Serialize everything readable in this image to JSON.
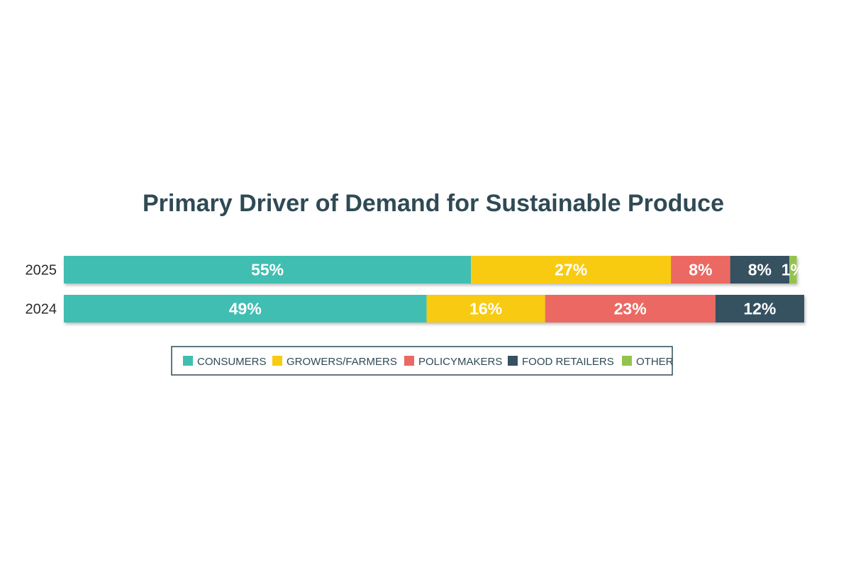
{
  "chart_data": {
    "type": "bar",
    "orientation": "horizontal",
    "stacked": true,
    "title": "Primary Driver of Demand for Sustainable Produce",
    "categories": [
      "2025",
      "2024"
    ],
    "series": [
      {
        "name": "CONSUMERS",
        "color": "#41beb2",
        "values": [
          55,
          49
        ],
        "labels": [
          "55%",
          "49%"
        ]
      },
      {
        "name": "GROWERS/FARMERS",
        "color": "#f8cb12",
        "values": [
          27,
          16
        ],
        "labels": [
          "27%",
          "16%"
        ]
      },
      {
        "name": "POLICYMAKERS",
        "color": "#eb6962",
        "values": [
          8,
          23
        ],
        "labels": [
          "8%",
          "23%"
        ]
      },
      {
        "name": "FOOD RETAILERS",
        "color": "#365160",
        "values": [
          8,
          12
        ],
        "labels": [
          "8%",
          "12%"
        ]
      },
      {
        "name": "OTHER",
        "color": "#93c34e",
        "values": [
          1,
          0
        ],
        "labels": [
          "1%",
          ""
        ]
      }
    ],
    "xlim": [
      0,
      100
    ],
    "grid": false,
    "legend_position": "bottom"
  }
}
